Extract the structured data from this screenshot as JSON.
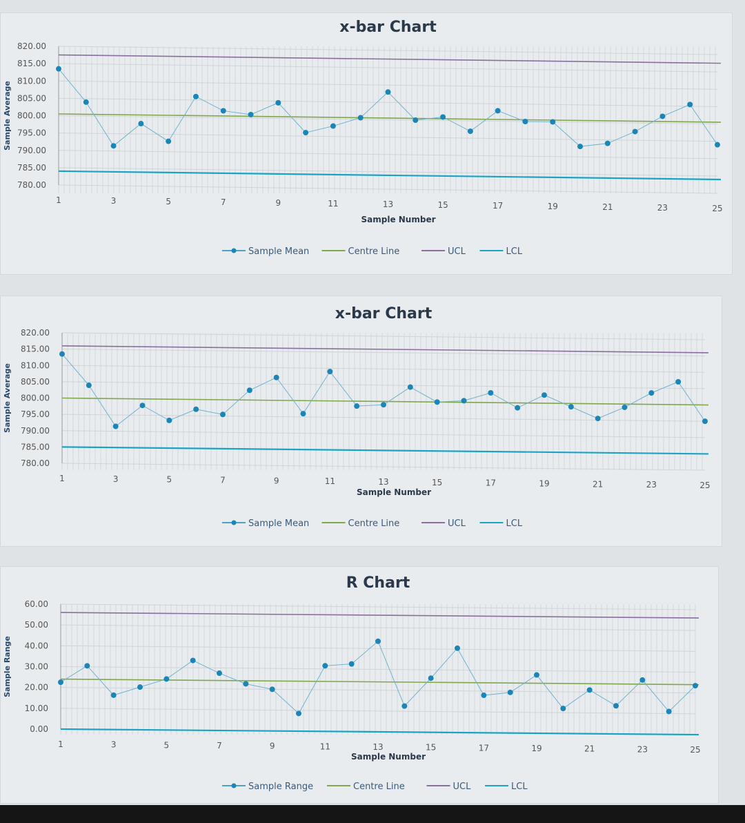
{
  "chart_data": [
    {
      "type": "line",
      "title": "x-bar Chart",
      "xlabel": "Sample Number",
      "ylabel": "Sample Average",
      "ylim": [
        780,
        820
      ],
      "yticks": [
        "780.00",
        "785.00",
        "790.00",
        "795.00",
        "800.00",
        "805.00",
        "810.00",
        "815.00",
        "820.00"
      ],
      "xticks": [
        "1",
        "3",
        "5",
        "7",
        "9",
        "11",
        "13",
        "15",
        "17",
        "19",
        "21",
        "23",
        "25"
      ],
      "x": [
        1,
        2,
        3,
        4,
        5,
        6,
        7,
        8,
        9,
        10,
        11,
        12,
        13,
        14,
        15,
        16,
        17,
        18,
        19,
        20,
        21,
        22,
        23,
        24,
        25
      ],
      "grid": true,
      "legend": "bottom",
      "series": [
        {
          "name": "Sample Mean",
          "color": "#1a86b8",
          "values": [
            813.5,
            804,
            791.5,
            798,
            793,
            806,
            802,
            801,
            804.5,
            796,
            798,
            800.5,
            808,
            800,
            801,
            797,
            803,
            800,
            800,
            793,
            794,
            797.5,
            802,
            805.5,
            794
          ]
        },
        {
          "name": "Centre Line",
          "color": "#7fa84a",
          "value": 800.5
        },
        {
          "name": "UCL",
          "color": "#8a6f9e",
          "value": 817.5
        },
        {
          "name": "LCL",
          "color": "#1aa3c4",
          "value": 784
        }
      ]
    },
    {
      "type": "line",
      "title": "x-bar Chart",
      "xlabel": "Sample Number",
      "ylabel": "Sample Average",
      "ylim": [
        780,
        820
      ],
      "yticks": [
        "780.00",
        "785.00",
        "790.00",
        "795.00",
        "800.00",
        "805.00",
        "810.00",
        "815.00",
        "820.00"
      ],
      "xticks": [
        "1",
        "3",
        "5",
        "7",
        "9",
        "11",
        "13",
        "15",
        "17",
        "19",
        "21",
        "23",
        "25"
      ],
      "x": [
        1,
        2,
        3,
        4,
        5,
        6,
        7,
        8,
        9,
        10,
        11,
        12,
        13,
        14,
        15,
        16,
        17,
        18,
        19,
        20,
        21,
        22,
        23,
        24,
        25
      ],
      "grid": true,
      "legend": "bottom",
      "series": [
        {
          "name": "Sample Mean",
          "color": "#1a86b8",
          "values": [
            813.5,
            804,
            791.5,
            798,
            793.5,
            797,
            795.5,
            803,
            807,
            796,
            809,
            798.5,
            799,
            804.5,
            800,
            800.5,
            803,
            798.5,
            802.5,
            799,
            795.5,
            799,
            803.5,
            807,
            795
          ]
        },
        {
          "name": "Centre Line",
          "color": "#7fa84a",
          "value": 800
        },
        {
          "name": "UCL",
          "color": "#8a6f9e",
          "value": 816
        },
        {
          "name": "LCL",
          "color": "#1aa3c4",
          "value": 785
        }
      ]
    },
    {
      "type": "line",
      "title": "R Chart",
      "xlabel": "Sample Number",
      "ylabel": "Sample Range",
      "ylim": [
        0,
        60
      ],
      "yticks": [
        "0.00",
        "10.00",
        "20.00",
        "30.00",
        "40.00",
        "50.00",
        "60.00"
      ],
      "xticks": [
        "1",
        "3",
        "5",
        "7",
        "9",
        "11",
        "13",
        "15",
        "17",
        "19",
        "21",
        "23",
        "25"
      ],
      "x": [
        1,
        2,
        3,
        4,
        5,
        6,
        7,
        8,
        9,
        10,
        11,
        12,
        13,
        14,
        15,
        16,
        17,
        18,
        19,
        20,
        21,
        22,
        23,
        24,
        25
      ],
      "grid": true,
      "legend": "bottom",
      "series": [
        {
          "name": "Sample Range",
          "color": "#1a86b8",
          "values": [
            22.5,
            30.5,
            16.5,
            20.5,
            24.5,
            33.5,
            27.5,
            22.5,
            20,
            8.5,
            31.5,
            32.5,
            43.5,
            12.5,
            26,
            40.5,
            18,
            19.5,
            28,
            12,
            21,
            13.5,
            26,
            11,
            23.5
          ]
        },
        {
          "name": "Centre Line",
          "color": "#7fa84a",
          "value": 24
        },
        {
          "name": "UCL",
          "color": "#8a6f9e",
          "value": 56
        },
        {
          "name": "LCL",
          "color": "#1aa3c4",
          "value": 0
        }
      ]
    }
  ]
}
